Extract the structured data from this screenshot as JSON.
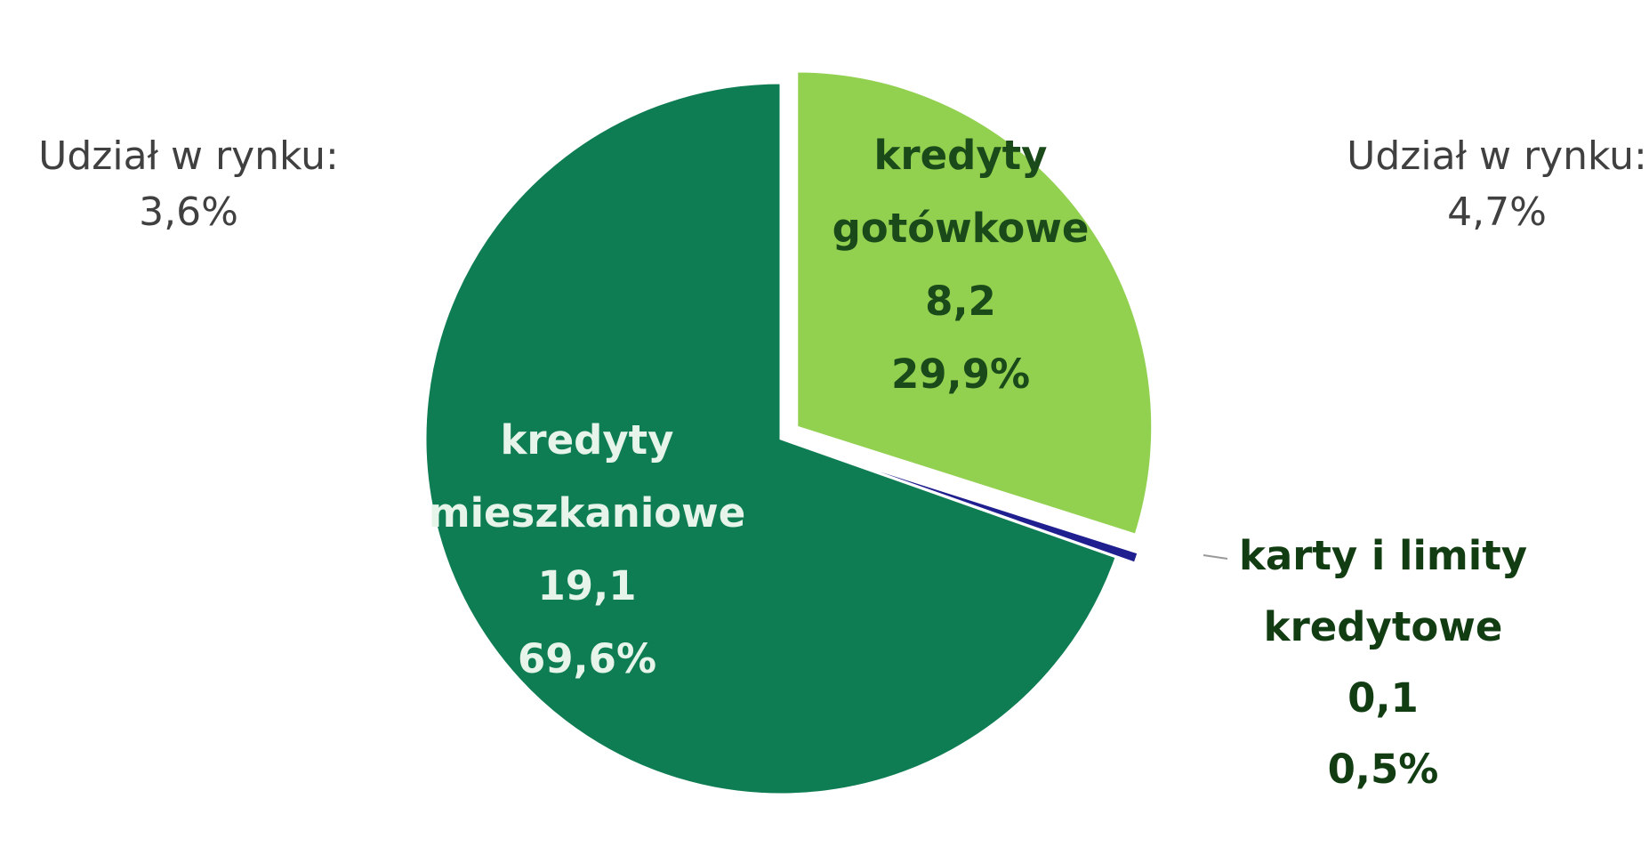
{
  "chart_data": {
    "type": "pie",
    "slices": [
      {
        "label": [
          "kredyty",
          "mieszkaniowe"
        ],
        "value": "19,1",
        "percent": "69,6%",
        "share": 69.6,
        "color": "#0f7d53",
        "label_color": "#e6f4ea",
        "exploded": false
      },
      {
        "label": [
          "kredyty",
          "gotówkowe"
        ],
        "value": "8,2",
        "percent": "29,9%",
        "share": 29.9,
        "color": "#92d050",
        "label_color": "#1a4a1a",
        "exploded": true
      },
      {
        "label": [
          "karty i limity",
          "kredytowe"
        ],
        "value": "0,1",
        "percent": "0,5%",
        "share": 0.5,
        "color": "#1f1f8f",
        "label_color": "#123d12",
        "exploded": true
      }
    ],
    "annotations": [
      {
        "title": "Udział w rynku:",
        "value": "3,6%"
      },
      {
        "title": "Udział w rynku:",
        "value": "4,7%"
      }
    ]
  }
}
